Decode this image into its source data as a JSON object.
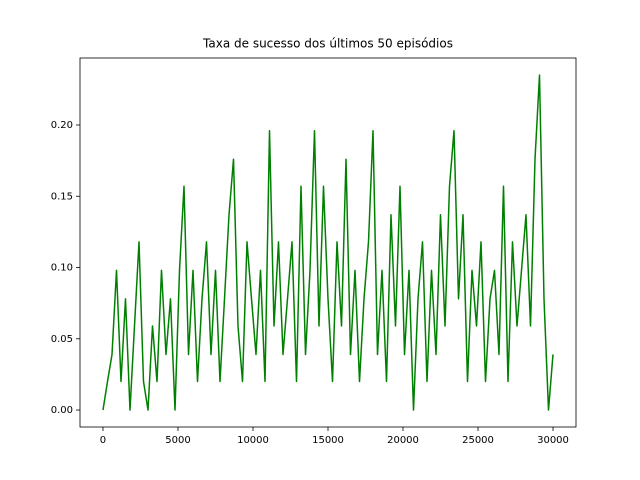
{
  "chart_data": {
    "type": "line",
    "title": "Taxa de sucesso dos últimos 50 episódios",
    "x": [
      0,
      300,
      600,
      900,
      1200,
      1500,
      1800,
      2100,
      2400,
      2700,
      3000,
      3300,
      3600,
      3900,
      4200,
      4500,
      4800,
      5100,
      5400,
      5700,
      6000,
      6300,
      6600,
      6900,
      7200,
      7500,
      7800,
      8100,
      8400,
      8700,
      9000,
      9300,
      9600,
      9900,
      10200,
      10500,
      10800,
      11100,
      11400,
      11700,
      12000,
      12300,
      12600,
      12900,
      13200,
      13500,
      13800,
      14100,
      14400,
      14700,
      15000,
      15300,
      15600,
      15900,
      16200,
      16500,
      16800,
      17100,
      17400,
      17700,
      18000,
      18300,
      18600,
      18900,
      19200,
      19500,
      19800,
      20100,
      20400,
      20700,
      21000,
      21300,
      21600,
      21900,
      22200,
      22500,
      22800,
      23100,
      23400,
      23700,
      24000,
      24300,
      24600,
      24900,
      25200,
      25500,
      25800,
      26100,
      26400,
      26700,
      27000,
      27300,
      27600,
      27900,
      28200,
      28500,
      28800,
      29100,
      29400,
      29700,
      30000
    ],
    "series": [
      {
        "color": "#008000",
        "values": [
          0,
          0.02,
          0.039,
          0.098,
          0.02,
          0.078,
          0,
          0.059,
          0.118,
          0.02,
          0,
          0.059,
          0.02,
          0.098,
          0.039,
          0.078,
          0,
          0.098,
          0.157,
          0.039,
          0.098,
          0.02,
          0.078,
          0.118,
          0.039,
          0.098,
          0.02,
          0.078,
          0.137,
          0.176,
          0.059,
          0.02,
          0.118,
          0.078,
          0.039,
          0.098,
          0.02,
          0.196,
          0.059,
          0.118,
          0.039,
          0.078,
          0.118,
          0.02,
          0.157,
          0.039,
          0.098,
          0.196,
          0.059,
          0.157,
          0.078,
          0.02,
          0.118,
          0.059,
          0.176,
          0.039,
          0.098,
          0.02,
          0.078,
          0.118,
          0.196,
          0.039,
          0.098,
          0.02,
          0.137,
          0.059,
          0.157,
          0.039,
          0.098,
          0,
          0.078,
          0.118,
          0.02,
          0.098,
          0.039,
          0.137,
          0.059,
          0.157,
          0.196,
          0.078,
          0.137,
          0.02,
          0.098,
          0.059,
          0.118,
          0.02,
          0.078,
          0.098,
          0.039,
          0.157,
          0.02,
          0.118,
          0.059,
          0.098,
          0.137,
          0.059,
          0.176,
          0.235,
          0.078,
          0,
          0.039
        ]
      }
    ],
    "xlim": [
      -1533,
      31533
    ],
    "ylim": [
      -0.0119,
      0.247
    ],
    "xticks": [
      0,
      5000,
      10000,
      15000,
      20000,
      25000,
      30000
    ],
    "yticks": [
      {
        "value": 0,
        "label": "0.00"
      },
      {
        "value": 0.05,
        "label": "0.05"
      },
      {
        "value": 0.1,
        "label": "0.10"
      },
      {
        "value": 0.15,
        "label": "0.15"
      },
      {
        "value": 0.2,
        "label": "0.20"
      }
    ]
  }
}
